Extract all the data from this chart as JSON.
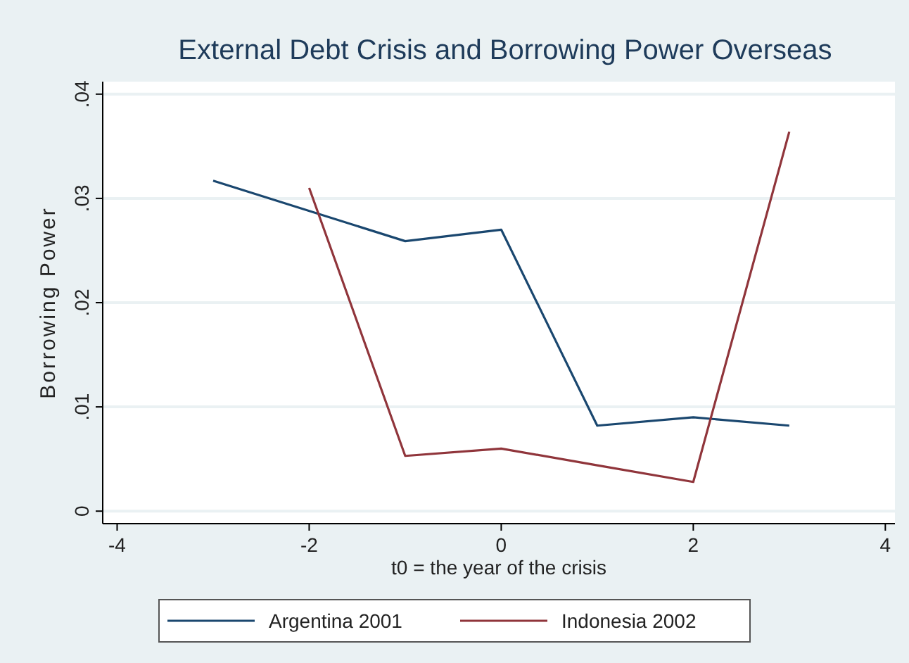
{
  "chart_data": {
    "type": "line",
    "title": "External Debt Crisis and Borrowing Power Overseas",
    "xlabel": "t0 = the year of the crisis",
    "ylabel": "Borrowing Power",
    "series": [
      {
        "name": "Argentina 2001",
        "color": "#1a476f",
        "x": [
          -3,
          -1,
          0,
          1,
          2,
          3
        ],
        "values": [
          0.0317,
          0.0259,
          0.027,
          0.0082,
          0.009,
          0.0082
        ]
      },
      {
        "name": "Indonesia 2002",
        "color": "#90353b",
        "x": [
          -2,
          -1,
          0,
          1,
          2,
          3
        ],
        "values": [
          0.031,
          0.0053,
          0.006,
          0.0044,
          0.0028,
          0.0364
        ]
      }
    ],
    "xlim": [
      -4.15,
      4.1
    ],
    "xticks": [
      -4,
      -2,
      0,
      2,
      4
    ],
    "ylim": [
      -0.0012,
      0.0412
    ],
    "yticks": [
      {
        "value": 0,
        "label": "0"
      },
      {
        "value": 0.01,
        "label": ".01"
      },
      {
        "value": 0.02,
        "label": ".02"
      },
      {
        "value": 0.03,
        "label": ".03"
      },
      {
        "value": 0.04,
        "label": ".04"
      }
    ],
    "grid": "y",
    "legend": "bottom",
    "marker": "none",
    "line_style": "solid"
  }
}
